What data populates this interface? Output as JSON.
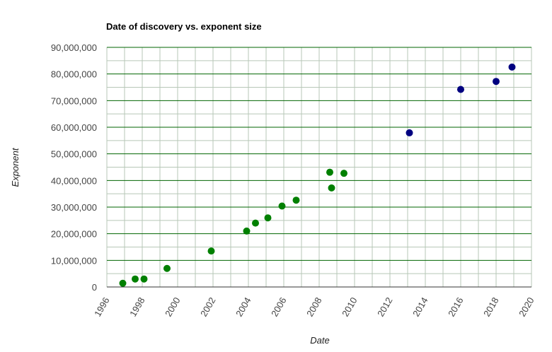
{
  "chart_data": {
    "type": "scatter",
    "title": "Date of discovery vs. exponent size",
    "xlabel": "Date",
    "ylabel": "Exponent",
    "x_unit": "year",
    "xlim": [
      1996,
      2020
    ],
    "ylim": [
      0,
      90000000
    ],
    "x_ticks": [
      "1996",
      "1998",
      "2000",
      "2002",
      "2004",
      "2006",
      "2008",
      "2010",
      "2012",
      "2014",
      "2016",
      "2018",
      "2020"
    ],
    "y_ticks": [
      "0",
      "10,000,000",
      "20,000,000",
      "30,000,000",
      "40,000,000",
      "50,000,000",
      "60,000,000",
      "70,000,000",
      "80,000,000",
      "90,000,000"
    ],
    "grid": true,
    "legend": "none",
    "series": [
      {
        "color": "#008000",
        "points": [
          {
            "x": 1996.9,
            "y": 1400000
          },
          {
            "x": 1997.6,
            "y": 3000000
          },
          {
            "x": 1998.1,
            "y": 3000000
          },
          {
            "x": 1999.4,
            "y": 6970000
          },
          {
            "x": 2001.9,
            "y": 13500000
          },
          {
            "x": 2003.9,
            "y": 21000000
          },
          {
            "x": 2004.4,
            "y": 24000000
          },
          {
            "x": 2005.1,
            "y": 25960000
          },
          {
            "x": 2005.9,
            "y": 30400000
          },
          {
            "x": 2006.7,
            "y": 32600000
          },
          {
            "x": 2008.6,
            "y": 43100000
          },
          {
            "x": 2008.7,
            "y": 37200000
          },
          {
            "x": 2009.4,
            "y": 42700000
          }
        ]
      },
      {
        "color": "#000080",
        "points": [
          {
            "x": 2013.1,
            "y": 57900000
          },
          {
            "x": 2016.0,
            "y": 74200000
          },
          {
            "x": 2018.0,
            "y": 77200000
          },
          {
            "x": 2018.9,
            "y": 82600000
          }
        ]
      }
    ],
    "colors": {
      "major_grid": "#006400",
      "minor_grid": "#b7c7b7",
      "tick_text": "#444444"
    }
  }
}
